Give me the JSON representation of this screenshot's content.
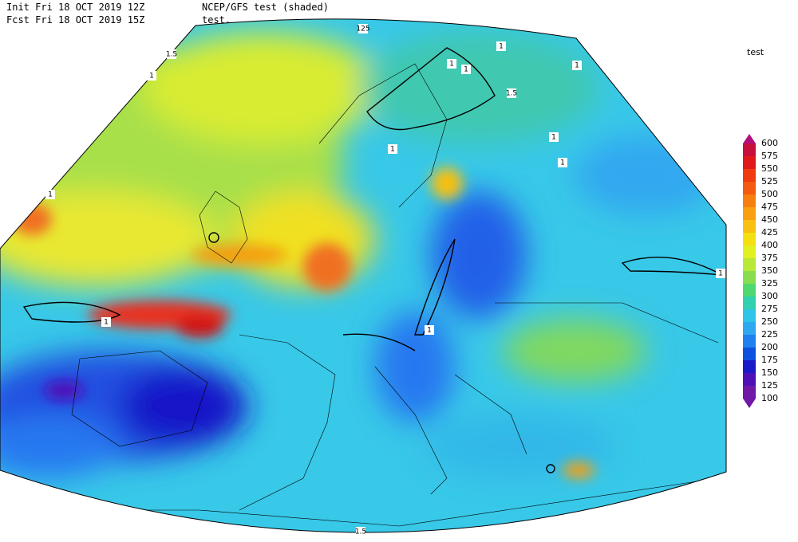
{
  "header": {
    "line1_left": "Init  Fri 18 OCT 2019 12Z",
    "line1_right": "NCEP/GFS test (shaded)",
    "line2_left": "Fcst Fri 18 OCT 2019 15Z",
    "line2_right": "test."
  },
  "legend": {
    "title": "test",
    "levels": [
      600,
      575,
      550,
      525,
      500,
      475,
      450,
      425,
      400,
      375,
      350,
      325,
      300,
      275,
      250,
      225,
      200,
      175,
      150,
      125,
      100
    ],
    "colors": [
      "#b0107e",
      "#c8103c",
      "#e01a1a",
      "#f03a10",
      "#f45a10",
      "#f77e10",
      "#f8a010",
      "#f8c010",
      "#f4e010",
      "#e0f020",
      "#b8e838",
      "#88dc50",
      "#50d870",
      "#30d0b0",
      "#30c4e8",
      "#30a8f0",
      "#2080f0",
      "#1050e0",
      "#1a1ac8",
      "#5010b8",
      "#7018a8"
    ]
  },
  "contour_labels": [
    "125",
    "1.5",
    "1",
    "1",
    "1",
    "1",
    "1.5",
    "1",
    "1",
    "1",
    "1",
    "1",
    "1",
    "1",
    "1",
    "1.5"
  ]
}
